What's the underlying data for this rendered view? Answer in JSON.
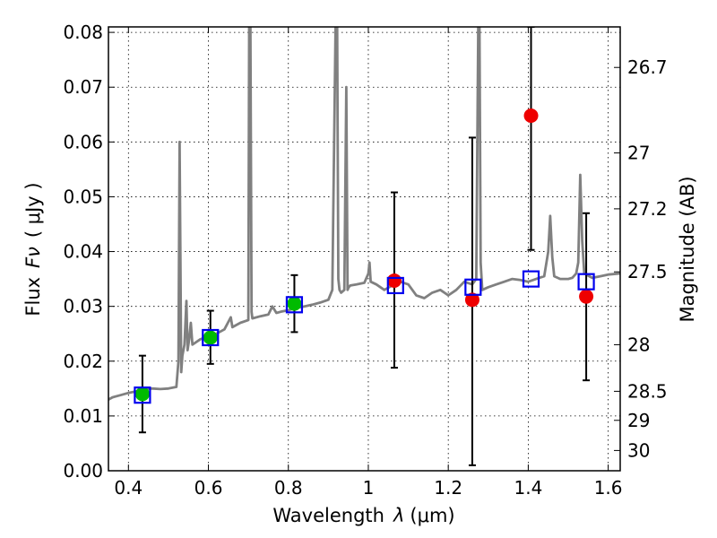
{
  "chart_data": {
    "type": "scatter",
    "title": "",
    "xlabel": "Wavelength",
    "xlabel_symbol": "λ",
    "xlabel_units": "(μm)",
    "ylabel": "Flux",
    "ylabel_symbol": "Fν",
    "ylabel_units": "( μJy )",
    "y2label": "Magnitude (AB)",
    "xlim": [
      0.35,
      1.63
    ],
    "ylim": [
      0.0,
      0.081
    ],
    "grid": true,
    "x_ticks": [
      0.4,
      0.6,
      0.8,
      1.0,
      1.2,
      1.4,
      1.6
    ],
    "x_tick_labels": [
      "0.4",
      "0.6",
      "0.8",
      "1",
      "1.2",
      "1.4",
      "1.6"
    ],
    "y_ticks": [
      0.0,
      0.01,
      0.02,
      0.03,
      0.04,
      0.05,
      0.06,
      0.07,
      0.08
    ],
    "y_tick_labels": [
      "0.00",
      "0.01",
      "0.02",
      "0.03",
      "0.04",
      "0.05",
      "0.06",
      "0.07",
      "0.08"
    ],
    "y2_ticks": [
      {
        "flux": 0.0736,
        "label": "26.7"
      },
      {
        "flux": 0.058,
        "label": "27"
      },
      {
        "flux": 0.0478,
        "label": "27.2"
      },
      {
        "flux": 0.0363,
        "label": "27.5"
      },
      {
        "flux": 0.023,
        "label": "28"
      },
      {
        "flux": 0.0145,
        "label": "28.5"
      },
      {
        "flux": 0.0092,
        "label": "29"
      },
      {
        "flux": 0.0037,
        "label": "30"
      }
    ],
    "colors": {
      "spectrum": "#808080",
      "ground_points": "#00bb00",
      "ir_points": "#ee0000",
      "model_points": "#0000ee",
      "errorbars": "#000000"
    },
    "series": [
      {
        "name": "spectrum",
        "kind": "line",
        "x": [
          0.35,
          0.36,
          0.38,
          0.4,
          0.42,
          0.44,
          0.46,
          0.48,
          0.5,
          0.52,
          0.525,
          0.528,
          0.532,
          0.535,
          0.54,
          0.545,
          0.548,
          0.552,
          0.556,
          0.56,
          0.58,
          0.6,
          0.62,
          0.64,
          0.656,
          0.66,
          0.68,
          0.7,
          0.702,
          0.705,
          0.708,
          0.71,
          0.73,
          0.75,
          0.76,
          0.77,
          0.78,
          0.8,
          0.82,
          0.84,
          0.86,
          0.88,
          0.9,
          0.91,
          0.918,
          0.922,
          0.925,
          0.928,
          0.932,
          0.94,
          0.945,
          0.948,
          0.951,
          0.955,
          0.97,
          0.99,
          1.0,
          1.003,
          1.006,
          1.02,
          1.04,
          1.06,
          1.08,
          1.1,
          1.12,
          1.14,
          1.16,
          1.18,
          1.2,
          1.22,
          1.24,
          1.26,
          1.27,
          1.275,
          1.278,
          1.281,
          1.285,
          1.3,
          1.32,
          1.34,
          1.36,
          1.38,
          1.4,
          1.42,
          1.44,
          1.45,
          1.455,
          1.46,
          1.465,
          1.48,
          1.5,
          1.51,
          1.52,
          1.525,
          1.53,
          1.535,
          1.54,
          1.56,
          1.58,
          1.6,
          1.63
        ],
        "y": [
          0.013,
          0.0134,
          0.0138,
          0.0142,
          0.0145,
          0.0148,
          0.015,
          0.0149,
          0.015,
          0.0153,
          0.02,
          0.06,
          0.018,
          0.021,
          0.023,
          0.031,
          0.022,
          0.024,
          0.027,
          0.023,
          0.024,
          0.0245,
          0.025,
          0.0258,
          0.028,
          0.0262,
          0.027,
          0.0275,
          0.081,
          0.081,
          0.029,
          0.0278,
          0.0282,
          0.0285,
          0.03,
          0.0288,
          0.029,
          0.0293,
          0.0297,
          0.03,
          0.0303,
          0.0307,
          0.0312,
          0.033,
          0.081,
          0.081,
          0.035,
          0.033,
          0.0325,
          0.033,
          0.07,
          0.033,
          0.0335,
          0.0338,
          0.034,
          0.0343,
          0.036,
          0.038,
          0.0345,
          0.034,
          0.033,
          0.0338,
          0.0345,
          0.034,
          0.032,
          0.0315,
          0.0325,
          0.033,
          0.032,
          0.033,
          0.0345,
          0.034,
          0.035,
          0.081,
          0.081,
          0.038,
          0.033,
          0.0335,
          0.034,
          0.0345,
          0.035,
          0.0348,
          0.0345,
          0.035,
          0.0355,
          0.04,
          0.0465,
          0.039,
          0.0355,
          0.035,
          0.035,
          0.0352,
          0.036,
          0.038,
          0.054,
          0.042,
          0.036,
          0.0352,
          0.0355,
          0.0358,
          0.036
        ]
      },
      {
        "name": "ground-based photometry",
        "kind": "points",
        "marker": "circle",
        "color": "#00bb00",
        "points": [
          {
            "x": 0.435,
            "y": 0.014,
            "err_low": 0.007,
            "err_high": 0.021
          },
          {
            "x": 0.605,
            "y": 0.0243,
            "err_low": 0.0195,
            "err_high": 0.0292
          },
          {
            "x": 0.815,
            "y": 0.0305,
            "err_low": 0.0253,
            "err_high": 0.0357
          }
        ]
      },
      {
        "name": "near-infrared photometry",
        "kind": "points",
        "marker": "circle",
        "color": "#ee0000",
        "points": [
          {
            "x": 1.065,
            "y": 0.0347,
            "err_low": 0.0188,
            "err_high": 0.0508
          },
          {
            "x": 1.26,
            "y": 0.0312,
            "err_low": 0.001,
            "err_high": 0.0608
          },
          {
            "x": 1.407,
            "y": 0.0648,
            "err_low": 0.0403,
            "err_high": 0.081
          },
          {
            "x": 1.545,
            "y": 0.0318,
            "err_low": 0.0165,
            "err_high": 0.047
          }
        ]
      },
      {
        "name": "model photometry",
        "kind": "points",
        "marker": "square",
        "color": "#0000ee",
        "points": [
          {
            "x": 0.435,
            "y": 0.0138
          },
          {
            "x": 0.605,
            "y": 0.0243
          },
          {
            "x": 0.815,
            "y": 0.0303
          },
          {
            "x": 1.068,
            "y": 0.0338
          },
          {
            "x": 1.262,
            "y": 0.0335
          },
          {
            "x": 1.407,
            "y": 0.035
          },
          {
            "x": 1.545,
            "y": 0.0345
          }
        ]
      }
    ]
  }
}
